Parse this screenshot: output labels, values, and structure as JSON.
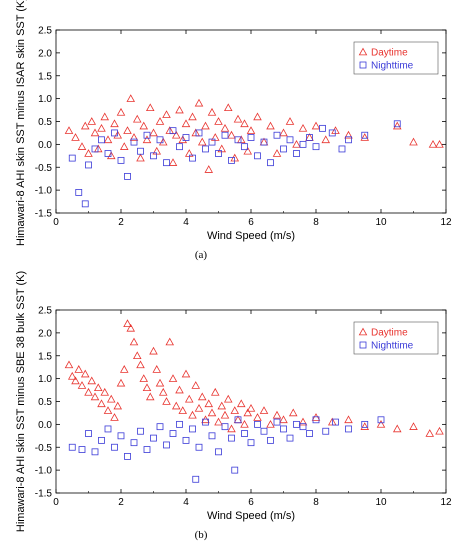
{
  "colors": {
    "daytime": "#e8332e",
    "nighttime": "#3a3ad8",
    "axis": "#000000"
  },
  "chart_data": [
    {
      "type": "scatter",
      "panel_label": "(a)",
      "xlabel": "Wind Speed (m/s)",
      "ylabel": "Himawari-8 AHI skin SST minus ISAR skin SST (K)",
      "xlim": [
        0,
        12
      ],
      "ylim": [
        -1.5,
        2.5
      ],
      "xticks": [
        "0",
        "2",
        "4",
        "6",
        "8",
        "10",
        "12"
      ],
      "yticks": [
        "-1.5",
        "-1.0",
        "-0.5",
        "0.0",
        "0.5",
        "1.0",
        "1.5",
        "2.0",
        "2.5"
      ],
      "grid": false,
      "legend_position": "top-right",
      "series": [
        {
          "name": "Daytime",
          "marker": "triangle",
          "points": [
            [
              0.4,
              0.3
            ],
            [
              0.6,
              0.15
            ],
            [
              0.8,
              -0.05
            ],
            [
              0.9,
              0.4
            ],
            [
              1.0,
              -0.2
            ],
            [
              1.1,
              0.5
            ],
            [
              1.2,
              0.25
            ],
            [
              1.3,
              -0.1
            ],
            [
              1.4,
              0.35
            ],
            [
              1.5,
              0.6
            ],
            [
              1.6,
              0.1
            ],
            [
              1.7,
              -0.25
            ],
            [
              1.8,
              0.45
            ],
            [
              1.9,
              0.2
            ],
            [
              2.0,
              0.7
            ],
            [
              2.1,
              -0.05
            ],
            [
              2.2,
              0.3
            ],
            [
              2.3,
              1.0
            ],
            [
              2.4,
              0.15
            ],
            [
              2.5,
              0.55
            ],
            [
              2.6,
              -0.3
            ],
            [
              2.7,
              0.4
            ],
            [
              2.8,
              0.1
            ],
            [
              2.9,
              0.8
            ],
            [
              3.0,
              0.25
            ],
            [
              3.1,
              -0.15
            ],
            [
              3.2,
              0.5
            ],
            [
              3.3,
              0.05
            ],
            [
              3.4,
              0.65
            ],
            [
              3.5,
              0.3
            ],
            [
              3.6,
              -0.4
            ],
            [
              3.7,
              0.2
            ],
            [
              3.8,
              0.75
            ],
            [
              3.9,
              0.1
            ],
            [
              4.0,
              0.45
            ],
            [
              4.1,
              -0.2
            ],
            [
              4.2,
              0.6
            ],
            [
              4.3,
              0.25
            ],
            [
              4.4,
              0.9
            ],
            [
              4.5,
              0.05
            ],
            [
              4.6,
              0.4
            ],
            [
              4.7,
              -0.55
            ],
            [
              4.8,
              0.7
            ],
            [
              4.9,
              0.15
            ],
            [
              5.0,
              0.5
            ],
            [
              5.1,
              -0.1
            ],
            [
              5.2,
              0.35
            ],
            [
              5.3,
              0.8
            ],
            [
              5.4,
              0.2
            ],
            [
              5.5,
              -0.3
            ],
            [
              5.6,
              0.55
            ],
            [
              5.7,
              0.1
            ],
            [
              5.8,
              0.45
            ],
            [
              5.9,
              -0.15
            ],
            [
              6.0,
              0.3
            ],
            [
              6.2,
              0.6
            ],
            [
              6.4,
              0.05
            ],
            [
              6.6,
              0.4
            ],
            [
              6.8,
              -0.2
            ],
            [
              7.0,
              0.25
            ],
            [
              7.2,
              0.5
            ],
            [
              7.4,
              0.0
            ],
            [
              7.6,
              0.35
            ],
            [
              7.8,
              0.15
            ],
            [
              8.0,
              0.4
            ],
            [
              8.3,
              0.1
            ],
            [
              8.6,
              0.3
            ],
            [
              9.0,
              0.2
            ],
            [
              9.5,
              0.15
            ],
            [
              10.5,
              0.4
            ],
            [
              11.0,
              0.05
            ],
            [
              11.6,
              0.0
            ],
            [
              11.8,
              0.0
            ]
          ]
        },
        {
          "name": "Nighttime",
          "marker": "square",
          "points": [
            [
              0.5,
              -0.3
            ],
            [
              0.7,
              -1.05
            ],
            [
              0.9,
              -1.3
            ],
            [
              1.0,
              -0.45
            ],
            [
              1.2,
              -0.1
            ],
            [
              1.4,
              0.1
            ],
            [
              1.6,
              -0.2
            ],
            [
              1.8,
              0.25
            ],
            [
              2.0,
              -0.35
            ],
            [
              2.2,
              -0.7
            ],
            [
              2.4,
              0.05
            ],
            [
              2.6,
              -0.15
            ],
            [
              2.8,
              0.2
            ],
            [
              3.0,
              -0.25
            ],
            [
              3.2,
              0.1
            ],
            [
              3.4,
              -0.4
            ],
            [
              3.6,
              0.3
            ],
            [
              3.8,
              -0.05
            ],
            [
              4.0,
              0.15
            ],
            [
              4.2,
              -0.3
            ],
            [
              4.4,
              0.25
            ],
            [
              4.6,
              -0.1
            ],
            [
              4.8,
              0.05
            ],
            [
              5.0,
              -0.2
            ],
            [
              5.2,
              0.2
            ],
            [
              5.4,
              -0.35
            ],
            [
              5.6,
              0.1
            ],
            [
              5.8,
              -0.05
            ],
            [
              6.0,
              0.15
            ],
            [
              6.2,
              -0.25
            ],
            [
              6.4,
              0.05
            ],
            [
              6.6,
              -0.4
            ],
            [
              6.8,
              0.2
            ],
            [
              7.0,
              -0.1
            ],
            [
              7.2,
              0.1
            ],
            [
              7.4,
              -0.2
            ],
            [
              7.6,
              0.0
            ],
            [
              7.8,
              0.15
            ],
            [
              8.0,
              -0.05
            ],
            [
              8.2,
              0.35
            ],
            [
              8.5,
              0.25
            ],
            [
              8.8,
              -0.1
            ],
            [
              9.0,
              0.1
            ],
            [
              9.5,
              0.2
            ],
            [
              10.5,
              0.45
            ]
          ]
        }
      ]
    },
    {
      "type": "scatter",
      "panel_label": "(b)",
      "xlabel": "Wind Speed (m/s)",
      "ylabel": "Himawari-8 AHI skin SST minus SBE 38 bulk SST (K)",
      "xlim": [
        0,
        12
      ],
      "ylim": [
        -1.5,
        2.5
      ],
      "xticks": [
        "0",
        "2",
        "4",
        "6",
        "8",
        "10",
        "12"
      ],
      "yticks": [
        "-1.5",
        "-1.0",
        "-0.5",
        "0.0",
        "0.5",
        "1.0",
        "1.5",
        "2.0",
        "2.5"
      ],
      "grid": false,
      "legend_position": "top-right",
      "series": [
        {
          "name": "Daytime",
          "marker": "triangle",
          "points": [
            [
              0.4,
              1.3
            ],
            [
              0.5,
              1.05
            ],
            [
              0.6,
              0.95
            ],
            [
              0.7,
              1.2
            ],
            [
              0.8,
              0.85
            ],
            [
              0.9,
              1.1
            ],
            [
              1.0,
              0.7
            ],
            [
              1.1,
              0.95
            ],
            [
              1.2,
              0.6
            ],
            [
              1.3,
              0.8
            ],
            [
              1.4,
              0.45
            ],
            [
              1.5,
              0.7
            ],
            [
              1.6,
              0.3
            ],
            [
              1.7,
              0.55
            ],
            [
              1.8,
              0.15
            ],
            [
              1.9,
              0.4
            ],
            [
              2.0,
              0.9
            ],
            [
              2.1,
              1.2
            ],
            [
              2.2,
              2.2
            ],
            [
              2.3,
              2.1
            ],
            [
              2.4,
              1.8
            ],
            [
              2.5,
              1.5
            ],
            [
              2.6,
              1.3
            ],
            [
              2.7,
              1.0
            ],
            [
              2.8,
              0.8
            ],
            [
              2.9,
              0.6
            ],
            [
              3.0,
              1.6
            ],
            [
              3.1,
              1.2
            ],
            [
              3.2,
              0.9
            ],
            [
              3.3,
              0.7
            ],
            [
              3.4,
              0.5
            ],
            [
              3.5,
              1.8
            ],
            [
              3.6,
              1.0
            ],
            [
              3.7,
              0.4
            ],
            [
              3.8,
              0.75
            ],
            [
              3.9,
              0.3
            ],
            [
              4.0,
              1.1
            ],
            [
              4.1,
              0.55
            ],
            [
              4.2,
              0.2
            ],
            [
              4.3,
              0.85
            ],
            [
              4.4,
              0.35
            ],
            [
              4.5,
              0.6
            ],
            [
              4.6,
              0.1
            ],
            [
              4.7,
              0.45
            ],
            [
              4.8,
              0.25
            ],
            [
              4.9,
              0.7
            ],
            [
              5.0,
              0.05
            ],
            [
              5.1,
              0.4
            ],
            [
              5.2,
              0.2
            ],
            [
              5.3,
              0.55
            ],
            [
              5.4,
              -0.1
            ],
            [
              5.5,
              0.3
            ],
            [
              5.6,
              0.1
            ],
            [
              5.7,
              0.45
            ],
            [
              5.8,
              0.0
            ],
            [
              5.9,
              0.25
            ],
            [
              6.0,
              0.35
            ],
            [
              6.2,
              0.15
            ],
            [
              6.4,
              0.3
            ],
            [
              6.6,
              0.0
            ],
            [
              6.8,
              0.2
            ],
            [
              7.0,
              0.1
            ],
            [
              7.3,
              0.25
            ],
            [
              7.6,
              0.05
            ],
            [
              8.0,
              0.15
            ],
            [
              8.5,
              0.05
            ],
            [
              9.0,
              0.1
            ],
            [
              9.5,
              -0.05
            ],
            [
              10.0,
              0.0
            ],
            [
              10.5,
              -0.1
            ],
            [
              11.0,
              -0.05
            ],
            [
              11.5,
              -0.2
            ],
            [
              11.8,
              -0.15
            ]
          ]
        },
        {
          "name": "Nighttime",
          "marker": "square",
          "points": [
            [
              0.5,
              -0.5
            ],
            [
              0.8,
              -0.55
            ],
            [
              1.0,
              -0.2
            ],
            [
              1.2,
              -0.6
            ],
            [
              1.4,
              -0.35
            ],
            [
              1.6,
              -0.1
            ],
            [
              1.8,
              -0.5
            ],
            [
              2.0,
              -0.25
            ],
            [
              2.2,
              -0.7
            ],
            [
              2.4,
              -0.4
            ],
            [
              2.6,
              -0.15
            ],
            [
              2.8,
              -0.55
            ],
            [
              3.0,
              -0.3
            ],
            [
              3.2,
              -0.05
            ],
            [
              3.4,
              -0.45
            ],
            [
              3.6,
              -0.2
            ],
            [
              3.8,
              0.0
            ],
            [
              4.0,
              -0.35
            ],
            [
              4.2,
              -0.1
            ],
            [
              4.4,
              -0.5
            ],
            [
              4.6,
              0.05
            ],
            [
              4.8,
              -0.25
            ],
            [
              5.0,
              -0.6
            ],
            [
              5.2,
              -0.05
            ],
            [
              5.4,
              -0.3
            ],
            [
              5.6,
              0.1
            ],
            [
              5.8,
              -0.2
            ],
            [
              6.0,
              -0.4
            ],
            [
              6.2,
              0.0
            ],
            [
              6.4,
              -0.15
            ],
            [
              6.6,
              -0.35
            ],
            [
              6.8,
              0.05
            ],
            [
              7.0,
              -0.1
            ],
            [
              7.2,
              -0.3
            ],
            [
              7.4,
              0.0
            ],
            [
              7.6,
              -0.05
            ],
            [
              7.8,
              -0.2
            ],
            [
              8.0,
              0.1
            ],
            [
              8.3,
              -0.15
            ],
            [
              8.6,
              0.05
            ],
            [
              9.0,
              -0.1
            ],
            [
              9.5,
              0.0
            ],
            [
              10.0,
              0.1
            ],
            [
              4.3,
              -1.2
            ],
            [
              5.5,
              -1.0
            ]
          ]
        }
      ]
    }
  ]
}
